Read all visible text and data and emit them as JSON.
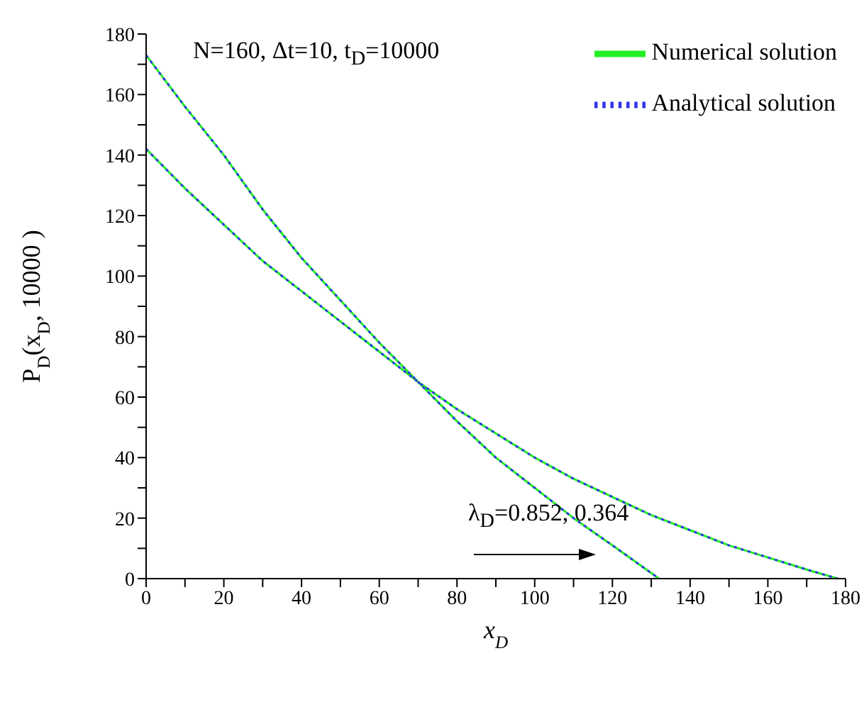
{
  "chart_data": {
    "type": "line",
    "xlabel": "x$_{D}$",
    "ylabel": "P$_{D}$(x$_{D}$, 10000 )",
    "annotations": [
      "N=160, Δt=10, t$_{D}$=10000",
      "λ$_{D}$=0.852, 0.364"
    ],
    "xlim": [
      0,
      180
    ],
    "ylim": [
      0,
      180
    ],
    "xticks": [
      0,
      {
        "value": 10,
        "label": null
      },
      20,
      {
        "value": 30,
        "label": null
      },
      40,
      {
        "value": 50,
        "label": null
      },
      60,
      {
        "value": 70,
        "label": null
      },
      80,
      {
        "value": 90,
        "label": null
      },
      100,
      {
        "value": 110,
        "label": null
      },
      120,
      {
        "value": 130,
        "label": null
      },
      140,
      {
        "value": 150,
        "label": null
      },
      160,
      {
        "value": 170,
        "label": null
      },
      180
    ],
    "yticks": [
      0,
      {
        "value": 10,
        "label": null
      },
      20,
      {
        "value": 30,
        "label": null
      },
      40,
      {
        "value": 50,
        "label": null
      },
      60,
      {
        "value": 70,
        "label": null
      },
      80,
      {
        "value": 90,
        "label": null
      },
      100,
      {
        "value": 110,
        "label": null
      },
      120,
      {
        "value": 130,
        "label": null
      },
      140,
      {
        "value": 150,
        "label": null
      },
      160,
      {
        "value": 170,
        "label": null
      },
      180
    ],
    "grid": false,
    "legend": "top right",
    "marker": "none",
    "series": [
      {
        "name": "Numerical solution",
        "color": "#22ee22",
        "line_style": "solid",
        "x": [
          0,
          10,
          20,
          30,
          40,
          50,
          60,
          70,
          80,
          90,
          100,
          110,
          120,
          132
        ],
        "values": [
          173,
          156,
          140,
          122,
          106,
          92,
          78,
          65,
          52,
          40,
          30,
          20,
          11,
          0
        ]
      },
      {
        "color": "#22ee22",
        "line_style": "solid",
        "x": [
          0,
          10,
          20,
          30,
          40,
          50,
          60,
          70,
          80,
          90,
          100,
          110,
          120,
          130,
          140,
          150,
          160,
          170,
          178
        ],
        "values": [
          142,
          129,
          117,
          105,
          95,
          85,
          75,
          65,
          56,
          48,
          40,
          33,
          27,
          21,
          16,
          11,
          7,
          3,
          0
        ]
      },
      {
        "name": "Analytical solution",
        "color": "#3333ee",
        "line_style": "dotted",
        "x": [
          0,
          10,
          20,
          30,
          40,
          50,
          60,
          70,
          80,
          90,
          100,
          110,
          120,
          132
        ],
        "values": [
          173,
          156,
          140,
          122,
          106,
          92,
          78,
          65,
          52,
          40,
          30,
          20,
          11,
          0
        ]
      },
      {
        "color": "#3333ee",
        "line_style": "dotted",
        "x": [
          0,
          10,
          20,
          30,
          40,
          50,
          60,
          70,
          80,
          90,
          100,
          110,
          120,
          130,
          140,
          150,
          160,
          170,
          178
        ],
        "values": [
          142,
          129,
          117,
          105,
          95,
          85,
          75,
          65,
          56,
          48,
          40,
          33,
          27,
          21,
          16,
          11,
          7,
          3,
          0
        ]
      }
    ]
  }
}
